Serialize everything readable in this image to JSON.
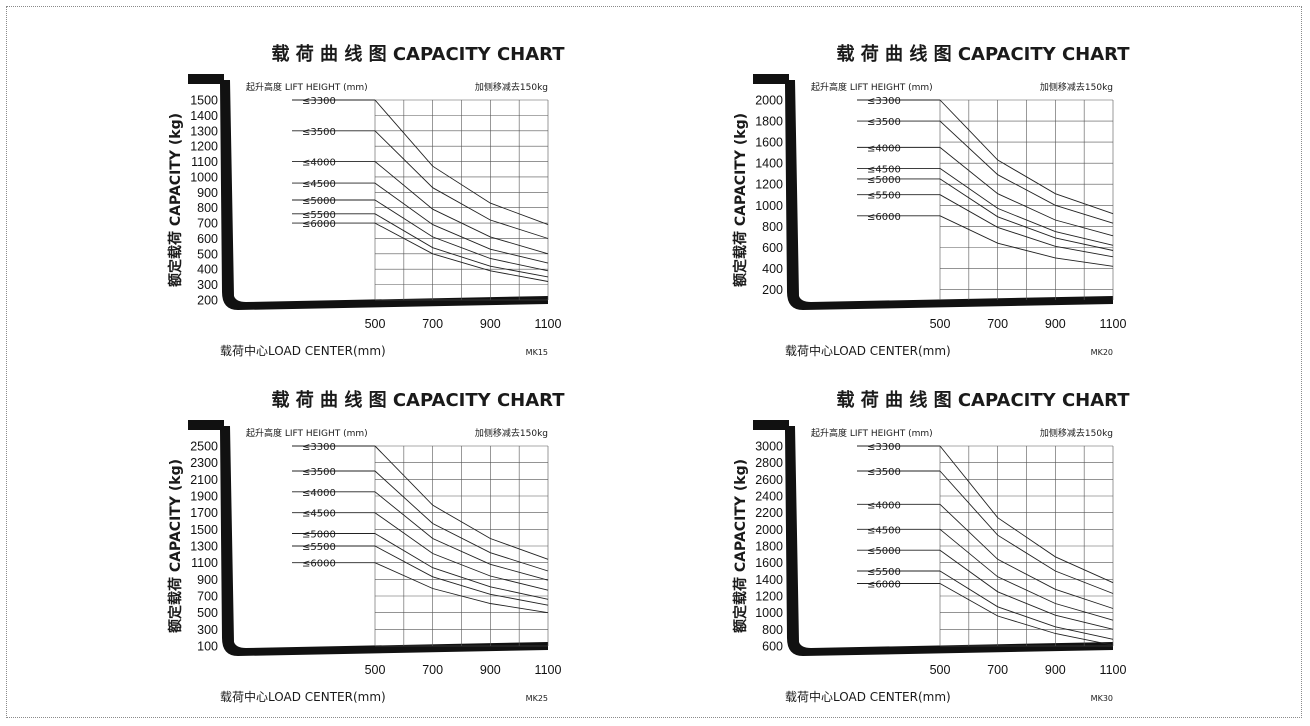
{
  "chart_data": [
    {
      "type": "line",
      "model": "MK15",
      "title": "载 荷 曲 线 图 CAPACITY CHART",
      "lift_height_label": "起升高度 LIFT HEIGHT (mm)",
      "side_shift_note": "加侧移减去150kg",
      "ylabel": "额定载荷 CAPACITY (kg)",
      "xlabel": "载荷中心LOAD CENTER(mm)",
      "x_ticks": [
        500,
        700,
        900,
        1100
      ],
      "y_ticks": [
        1500,
        1400,
        1300,
        1200,
        1100,
        1000,
        900,
        800,
        700,
        600,
        500,
        400,
        300,
        200
      ],
      "xlim": [
        0,
        1100
      ],
      "ylim": [
        200,
        1500
      ],
      "series": [
        {
          "name": "≤3300",
          "x": [
            500,
            700,
            900,
            1100
          ],
          "y": [
            1500,
            1070,
            830,
            690
          ]
        },
        {
          "name": "≤3500",
          "x": [
            500,
            700,
            900,
            1100
          ],
          "y": [
            1300,
            930,
            720,
            600
          ]
        },
        {
          "name": "≤4000",
          "x": [
            500,
            700,
            900,
            1100
          ],
          "y": [
            1100,
            790,
            610,
            500
          ]
        },
        {
          "name": "≤4500",
          "x": [
            500,
            700,
            900,
            1100
          ],
          "y": [
            960,
            690,
            530,
            440
          ]
        },
        {
          "name": "≤5000",
          "x": [
            500,
            700,
            900,
            1100
          ],
          "y": [
            850,
            610,
            470,
            390
          ]
        },
        {
          "name": "≤5500",
          "x": [
            500,
            700,
            900,
            1100
          ],
          "y": [
            760,
            540,
            420,
            350
          ]
        },
        {
          "name": "≤6000",
          "x": [
            500,
            700,
            900,
            1100
          ],
          "y": [
            700,
            500,
            390,
            320
          ]
        }
      ]
    },
    {
      "type": "line",
      "model": "MK20",
      "title": "载 荷 曲 线 图 CAPACITY CHART",
      "lift_height_label": "起升高度 LIFT HEIGHT (mm)",
      "side_shift_note": "加侧移减去150kg",
      "ylabel": "额定载荷 CAPACITY (kg)",
      "xlabel": "载荷中心LOAD CENTER(mm)",
      "x_ticks": [
        500,
        700,
        900,
        1100
      ],
      "y_ticks": [
        2000,
        1800,
        1600,
        1400,
        1200,
        1000,
        800,
        600,
        400,
        200
      ],
      "xlim": [
        0,
        1100
      ],
      "ylim": [
        100,
        2000
      ],
      "series": [
        {
          "name": "≤3300",
          "x": [
            500,
            700,
            900,
            1100
          ],
          "y": [
            2000,
            1430,
            1110,
            920
          ]
        },
        {
          "name": "≤3500",
          "x": [
            500,
            700,
            900,
            1100
          ],
          "y": [
            1800,
            1290,
            1000,
            830
          ]
        },
        {
          "name": "≤4000",
          "x": [
            500,
            700,
            900,
            1100
          ],
          "y": [
            1550,
            1110,
            860,
            710
          ]
        },
        {
          "name": "≤4500",
          "x": [
            500,
            700,
            900,
            1100
          ],
          "y": [
            1350,
            970,
            750,
            620
          ]
        },
        {
          "name": "≤5000",
          "x": [
            500,
            700,
            900,
            1100
          ],
          "y": [
            1250,
            890,
            690,
            570
          ]
        },
        {
          "name": "≤5500",
          "x": [
            500,
            700,
            900,
            1100
          ],
          "y": [
            1100,
            790,
            610,
            510
          ]
        },
        {
          "name": "≤6000",
          "x": [
            500,
            700,
            900,
            1100
          ],
          "y": [
            900,
            640,
            500,
            420
          ]
        }
      ]
    },
    {
      "type": "line",
      "model": "MK25",
      "title": "载 荷 曲 线 图 CAPACITY CHART",
      "lift_height_label": "起升高度 LIFT HEIGHT (mm)",
      "side_shift_note": "加侧移减去150kg",
      "ylabel": "额定载荷 CAPACITY (kg)",
      "xlabel": "载荷中心LOAD CENTER(mm)",
      "x_ticks": [
        500,
        700,
        900,
        1100
      ],
      "y_ticks": [
        2500,
        2300,
        2100,
        1900,
        1700,
        1500,
        1300,
        1100,
        900,
        700,
        500,
        300,
        100
      ],
      "xlim": [
        0,
        1100
      ],
      "ylim": [
        100,
        2500
      ],
      "series": [
        {
          "name": "≤3300",
          "x": [
            500,
            700,
            900,
            1100
          ],
          "y": [
            2500,
            1790,
            1390,
            1140
          ]
        },
        {
          "name": "≤3500",
          "x": [
            500,
            700,
            900,
            1100
          ],
          "y": [
            2200,
            1570,
            1220,
            1000
          ]
        },
        {
          "name": "≤4000",
          "x": [
            500,
            700,
            900,
            1100
          ],
          "y": [
            1950,
            1390,
            1080,
            890
          ]
        },
        {
          "name": "≤4500",
          "x": [
            500,
            700,
            900,
            1100
          ],
          "y": [
            1700,
            1210,
            940,
            770
          ]
        },
        {
          "name": "≤5000",
          "x": [
            500,
            700,
            900,
            1100
          ],
          "y": [
            1450,
            1040,
            810,
            660
          ]
        },
        {
          "name": "≤5500",
          "x": [
            500,
            700,
            900,
            1100
          ],
          "y": [
            1300,
            930,
            720,
            590
          ]
        },
        {
          "name": "≤6000",
          "x": [
            500,
            700,
            900,
            1100
          ],
          "y": [
            1100,
            790,
            610,
            500
          ]
        }
      ]
    },
    {
      "type": "line",
      "model": "MK30",
      "title": "载 荷 曲 线 图 CAPACITY CHART",
      "lift_height_label": "起升高度 LIFT HEIGHT (mm)",
      "side_shift_note": "加侧移减去150kg",
      "ylabel": "额定载荷 CAPACITY (kg)",
      "xlabel": "载荷中心LOAD CENTER(mm)",
      "x_ticks": [
        500,
        700,
        900,
        1100
      ],
      "y_ticks": [
        3000,
        2800,
        2600,
        2400,
        2200,
        2000,
        1800,
        1600,
        1400,
        1200,
        1000,
        800,
        600
      ],
      "xlim": [
        0,
        1100
      ],
      "ylim": [
        600,
        3000
      ],
      "series": [
        {
          "name": "≤3300",
          "x": [
            500,
            700,
            900,
            1100
          ],
          "y": [
            3000,
            2140,
            1670,
            1360
          ]
        },
        {
          "name": "≤3500",
          "x": [
            500,
            700,
            900,
            1100
          ],
          "y": [
            2700,
            1930,
            1500,
            1230
          ]
        },
        {
          "name": "≤4000",
          "x": [
            500,
            700,
            900,
            1100
          ],
          "y": [
            2300,
            1640,
            1280,
            1050
          ]
        },
        {
          "name": "≤4500",
          "x": [
            500,
            700,
            900,
            1100
          ],
          "y": [
            2000,
            1430,
            1110,
            910
          ]
        },
        {
          "name": "≤5000",
          "x": [
            500,
            700,
            900,
            1100
          ],
          "y": [
            1750,
            1250,
            970,
            800
          ]
        },
        {
          "name": "≤5500",
          "x": [
            500,
            700,
            900,
            1100
          ],
          "y": [
            1500,
            1070,
            830,
            680
          ]
        },
        {
          "name": "≤6000",
          "x": [
            500,
            700,
            900,
            1100
          ],
          "y": [
            1350,
            960,
            750,
            610
          ]
        }
      ]
    }
  ]
}
